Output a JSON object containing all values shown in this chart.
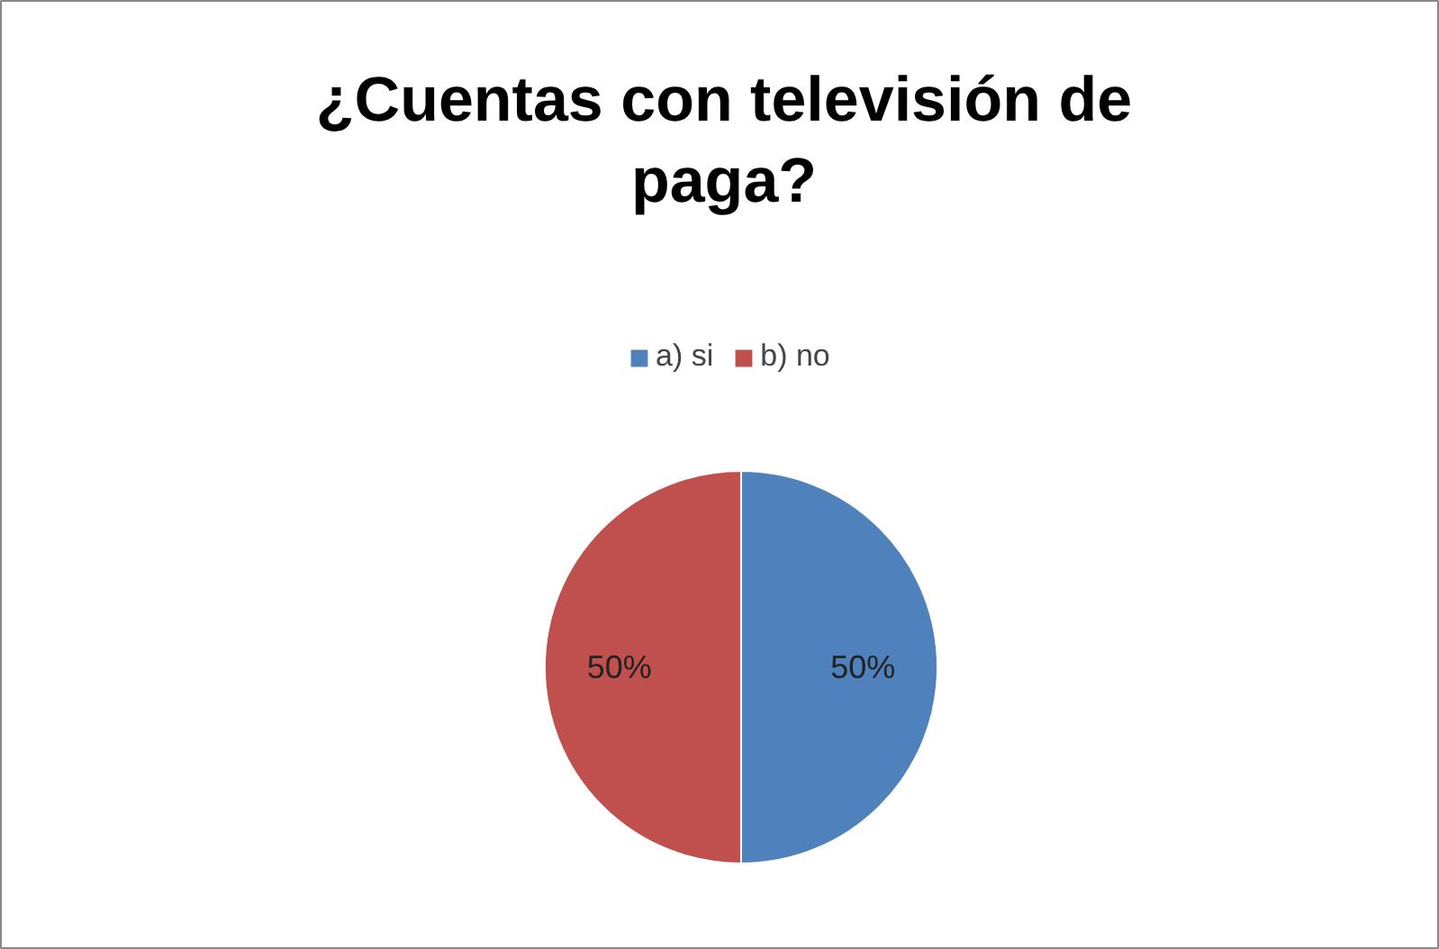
{
  "chart_data": {
    "type": "pie",
    "title": "¿Cuentas con televisión de paga?",
    "categories": [
      "a) si",
      "b) no"
    ],
    "values": [
      50,
      50
    ],
    "colors": [
      "#4f81bd",
      "#c0504d"
    ],
    "value_labels": [
      "50%",
      "50%"
    ],
    "legend": "top"
  }
}
